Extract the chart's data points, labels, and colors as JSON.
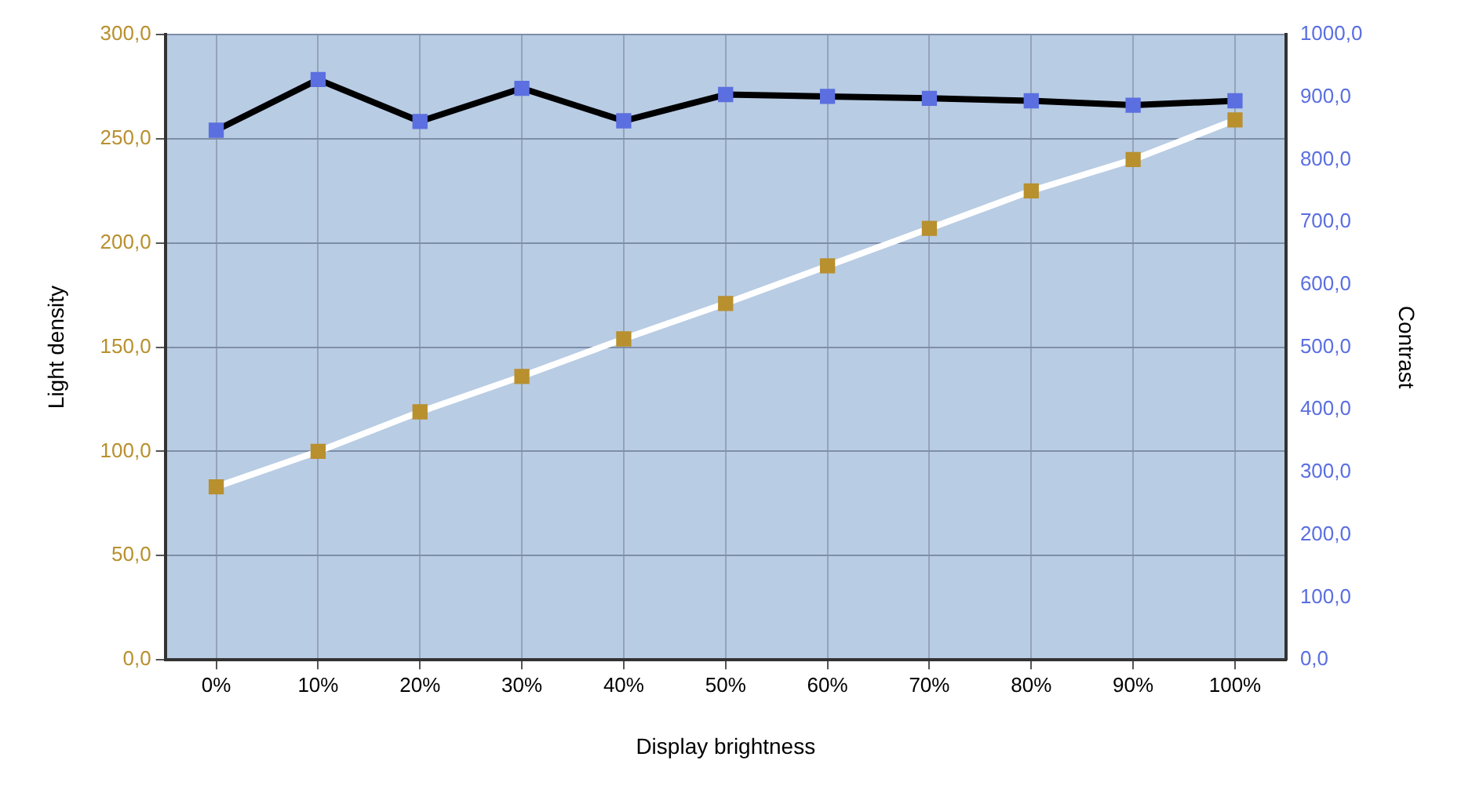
{
  "chart_data": {
    "type": "line",
    "xlabel": "Display brightness",
    "ylabel": "Light density",
    "y2label": "Contrast",
    "categories": [
      "0%",
      "10%",
      "20%",
      "30%",
      "40%",
      "50%",
      "60%",
      "70%",
      "80%",
      "90%",
      "100%"
    ],
    "series": [
      {
        "color": "#ffffff",
        "colors": [
          "#b8902e",
          "#b8902e",
          "#b8902e",
          "#b8902e",
          "#b8902e",
          "#b8902e",
          "#b8902e",
          "#b8902e",
          "#b8902e",
          "#b8902e",
          "#b8902e"
        ],
        "values": [
          83,
          100,
          119,
          136,
          154,
          171,
          189,
          207,
          225,
          240,
          259
        ]
      },
      {
        "color": "#000000",
        "colors": [
          "#5b6fe0",
          "#5b6fe0",
          "#5b6fe0",
          "#5b6fe0",
          "#5b6fe0",
          "#5b6fe0",
          "#5b6fe0",
          "#5b6fe0",
          "#5b6fe0",
          "#5b6fe0",
          "#5b6fe0"
        ],
        "axis": "y2",
        "values": [
          847,
          928,
          861,
          914,
          862,
          904,
          901,
          898,
          894,
          887,
          894
        ]
      }
    ],
    "ylim": [
      0,
      300
    ],
    "yticks": [
      {
        "value": 0,
        "label": "0,0"
      },
      {
        "value": 50,
        "label": "50,0"
      },
      {
        "value": 100,
        "label": "100,0"
      },
      {
        "value": 150,
        "label": "150,0"
      },
      {
        "value": 200,
        "label": "200,0"
      },
      {
        "value": 250,
        "label": "250,0"
      },
      {
        "value": 300,
        "label": "300,0"
      }
    ],
    "y2lim": [
      0,
      1000
    ],
    "y2ticks": [
      {
        "value": 0,
        "label": "0,0"
      },
      {
        "value": 100,
        "label": "100,0"
      },
      {
        "value": 200,
        "label": "200,0"
      },
      {
        "value": 300,
        "label": "300,0"
      },
      {
        "value": 400,
        "label": "400,0"
      },
      {
        "value": 500,
        "label": "500,0"
      },
      {
        "value": 600,
        "label": "600,0"
      },
      {
        "value": 700,
        "label": "700,0"
      },
      {
        "value": 800,
        "label": "800,0"
      },
      {
        "value": 900,
        "label": "900,0"
      },
      {
        "value": 1000,
        "label": "1000,0"
      }
    ],
    "grid": true,
    "legend": false,
    "marker": "square",
    "line_style": "solid"
  }
}
